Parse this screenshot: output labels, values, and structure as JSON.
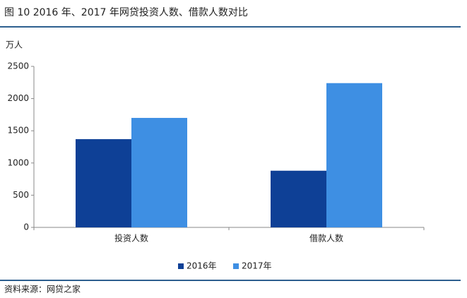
{
  "chart_data": {
    "type": "bar",
    "title": "图 10  2016 年、2017 年网贷投资人数、借款人数对比",
    "y_label": "万人",
    "categories": [
      "投资人数",
      "借款人数"
    ],
    "series": [
      {
        "name": "2016年",
        "color": "#0e4096",
        "values": [
          1370,
          880
        ]
      },
      {
        "name": "2017年",
        "color": "#3e8fe3",
        "values": [
          1700,
          2240
        ]
      }
    ],
    "ylim": [
      0,
      2500
    ],
    "yticks": [
      0,
      500,
      1000,
      1500,
      2000,
      2500
    ],
    "legend": "bottom",
    "source": "资料来源：网贷之家"
  }
}
